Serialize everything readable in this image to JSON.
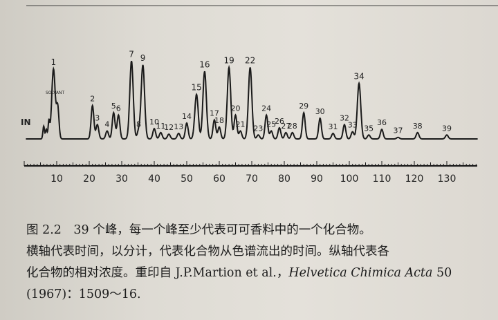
{
  "chart_data": {
    "type": "line",
    "xlabel": "",
    "ylabel": "",
    "xlim": [
      0,
      140
    ],
    "x_ticks": [
      10,
      20,
      30,
      40,
      50,
      60,
      70,
      80,
      90,
      100,
      110,
      120,
      130
    ],
    "start_label": "IN",
    "solvent_label": "SOLVANT",
    "grid": false,
    "peaks": [
      {
        "label": "1",
        "x": 9,
        "height": 0.88
      },
      {
        "label": "2",
        "x": 21,
        "height": 0.42
      },
      {
        "label": "3",
        "x": 22.5,
        "height": 0.18
      },
      {
        "label": "4",
        "x": 25.5,
        "height": 0.1
      },
      {
        "label": "5",
        "x": 27.5,
        "height": 0.33
      },
      {
        "label": "6",
        "x": 29,
        "height": 0.3
      },
      {
        "label": "7",
        "x": 33,
        "height": 0.98
      },
      {
        "label": "8",
        "x": 35.2,
        "height": 0.1
      },
      {
        "label": "9",
        "x": 36.5,
        "height": 0.93
      },
      {
        "label": "10",
        "x": 40,
        "height": 0.13
      },
      {
        "label": "11",
        "x": 42,
        "height": 0.08
      },
      {
        "label": "12",
        "x": 44.5,
        "height": 0.06
      },
      {
        "label": "13",
        "x": 47.5,
        "height": 0.07
      },
      {
        "label": "14",
        "x": 50,
        "height": 0.2
      },
      {
        "label": "15",
        "x": 53,
        "height": 0.56
      },
      {
        "label": "16",
        "x": 55.5,
        "height": 0.85
      },
      {
        "label": "17",
        "x": 58.5,
        "height": 0.24
      },
      {
        "label": "18",
        "x": 60,
        "height": 0.15
      },
      {
        "label": "19",
        "x": 63,
        "height": 0.9
      },
      {
        "label": "20",
        "x": 65,
        "height": 0.3
      },
      {
        "label": "21",
        "x": 66.5,
        "height": 0.1
      },
      {
        "label": "22",
        "x": 69.5,
        "height": 0.9
      },
      {
        "label": "23",
        "x": 72,
        "height": 0.05
      },
      {
        "label": "24",
        "x": 74.5,
        "height": 0.3
      },
      {
        "label": "25",
        "x": 76,
        "height": 0.1
      },
      {
        "label": "26",
        "x": 78.5,
        "height": 0.14
      },
      {
        "label": "27",
        "x": 80.5,
        "height": 0.08
      },
      {
        "label": "28",
        "x": 82.5,
        "height": 0.08
      },
      {
        "label": "29",
        "x": 86,
        "height": 0.33
      },
      {
        "label": "30",
        "x": 91,
        "height": 0.26
      },
      {
        "label": "31",
        "x": 95,
        "height": 0.07
      },
      {
        "label": "32",
        "x": 98.5,
        "height": 0.18
      },
      {
        "label": "33",
        "x": 101,
        "height": 0.09
      },
      {
        "label": "34",
        "x": 103,
        "height": 0.7
      },
      {
        "label": "35",
        "x": 106,
        "height": 0.05
      },
      {
        "label": "36",
        "x": 110,
        "height": 0.12
      },
      {
        "label": "37",
        "x": 115,
        "height": 0.02
      },
      {
        "label": "38",
        "x": 121,
        "height": 0.08
      },
      {
        "label": "39",
        "x": 130,
        "height": 0.05
      }
    ]
  },
  "caption": {
    "line1": "图 2.2　39 个峰，每一个峰至少代表可可香料中的一个化合物。",
    "line2": "横轴代表时间，以分计，代表化合物从色谱流出的时间。纵轴代表各",
    "line3_prefix": "化合物的相对浓度。重印自 J.P.Martion et al.，",
    "line3_journal": "Helvetica Chimica Acta",
    "line3_suffix": " 50",
    "line4": "(1967)：1509～16."
  }
}
